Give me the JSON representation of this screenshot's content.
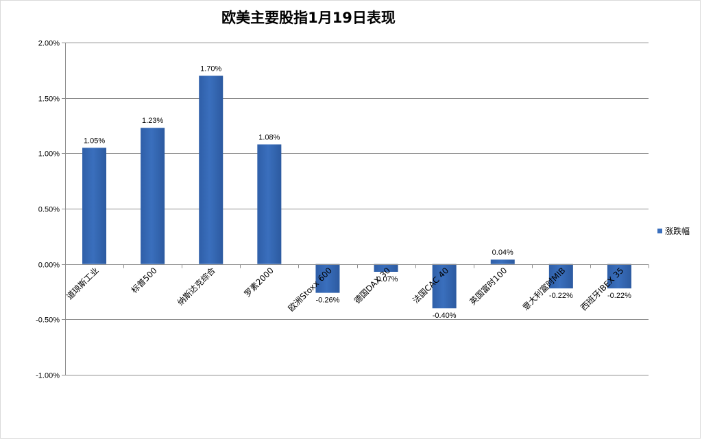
{
  "chart_data": {
    "type": "bar",
    "title": "欧美主要股指1月19日表现",
    "categories": [
      "道琼斯工业",
      "标普500",
      "纳斯达克综合",
      "罗素2000",
      "欧洲Stoxx 600",
      "德国DAX 30",
      "法国CAC 40",
      "英国富时100",
      "意大利富时MIB",
      "西班牙IBEX 35"
    ],
    "series": [
      {
        "name": "涨跌幅",
        "values": [
          1.05,
          1.23,
          1.7,
          1.08,
          -0.26,
          -0.07,
          -0.4,
          0.04,
          -0.22,
          -0.22
        ],
        "labels": [
          "1.05%",
          "1.23%",
          "1.70%",
          "1.08%",
          "-0.26%",
          "-0.07%",
          "-0.40%",
          "0.04%",
          "-0.22%",
          "-0.22%"
        ]
      }
    ],
    "y_ticks": [
      "2.00%",
      "1.50%",
      "1.00%",
      "0.50%",
      "0.00%",
      "-0.50%",
      "-1.00%"
    ],
    "ylim": [
      -1.0,
      2.0
    ],
    "grid": true,
    "legend_position": "right",
    "bar_color": "#3a6fbd"
  }
}
